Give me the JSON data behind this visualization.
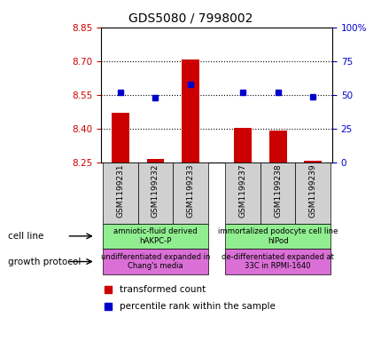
{
  "title": "GDS5080 / 7998002",
  "samples": [
    "GSM1199231",
    "GSM1199232",
    "GSM1199233",
    "GSM1199237",
    "GSM1199238",
    "GSM1199239"
  ],
  "transformed_count": [
    8.47,
    8.265,
    8.71,
    8.405,
    8.39,
    8.255
  ],
  "percentile_rank": [
    52,
    48,
    58,
    52,
    52,
    49
  ],
  "y_left_min": 8.25,
  "y_left_max": 8.85,
  "y_right_min": 0,
  "y_right_max": 100,
  "y_left_ticks": [
    8.25,
    8.4,
    8.55,
    8.7,
    8.85
  ],
  "y_right_ticks": [
    0,
    25,
    50,
    75,
    100
  ],
  "cell_line_color": "#90EE90",
  "growth_protocol_color": "#DA70D6",
  "bar_color": "#CC0000",
  "dot_color": "#0000CC",
  "tick_color_left": "#CC0000",
  "tick_color_right": "#0000CC",
  "bar_bottom": 8.25,
  "x_positions": [
    0,
    1,
    2,
    3.5,
    4.5,
    5.5
  ],
  "x_min": -0.55,
  "x_max": 6.05
}
